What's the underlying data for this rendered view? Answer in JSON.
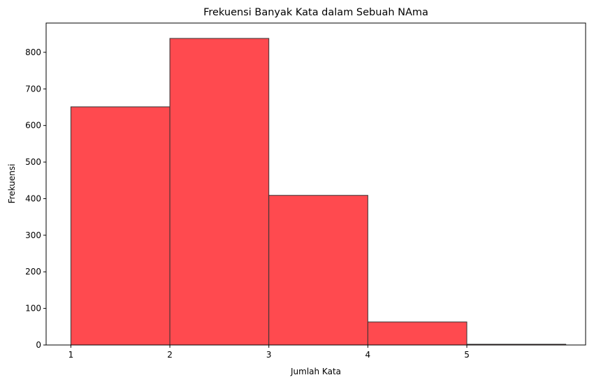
{
  "chart_data": {
    "type": "bar",
    "title": "Frekuensi Banyak Kata dalam Sebuah NAma",
    "xlabel": "Jumlah Kata",
    "ylabel": "Frekuensi",
    "bins": [
      {
        "start": 1,
        "end": 2,
        "value": 651
      },
      {
        "start": 2,
        "end": 3,
        "value": 838
      },
      {
        "start": 3,
        "end": 4,
        "value": 409
      },
      {
        "start": 4,
        "end": 5,
        "value": 63
      },
      {
        "start": 5,
        "end": 6,
        "value": 2
      }
    ],
    "xlim": [
      0.75,
      6.2
    ],
    "ylim": [
      0,
      880
    ],
    "xticks": [
      1,
      2,
      3,
      4,
      5
    ],
    "yticks": [
      0,
      100,
      200,
      300,
      400,
      500,
      600,
      700,
      800
    ],
    "bar_color": "#ff4a4f",
    "edge_color": "#333333",
    "grid": false,
    "legend": "none"
  }
}
